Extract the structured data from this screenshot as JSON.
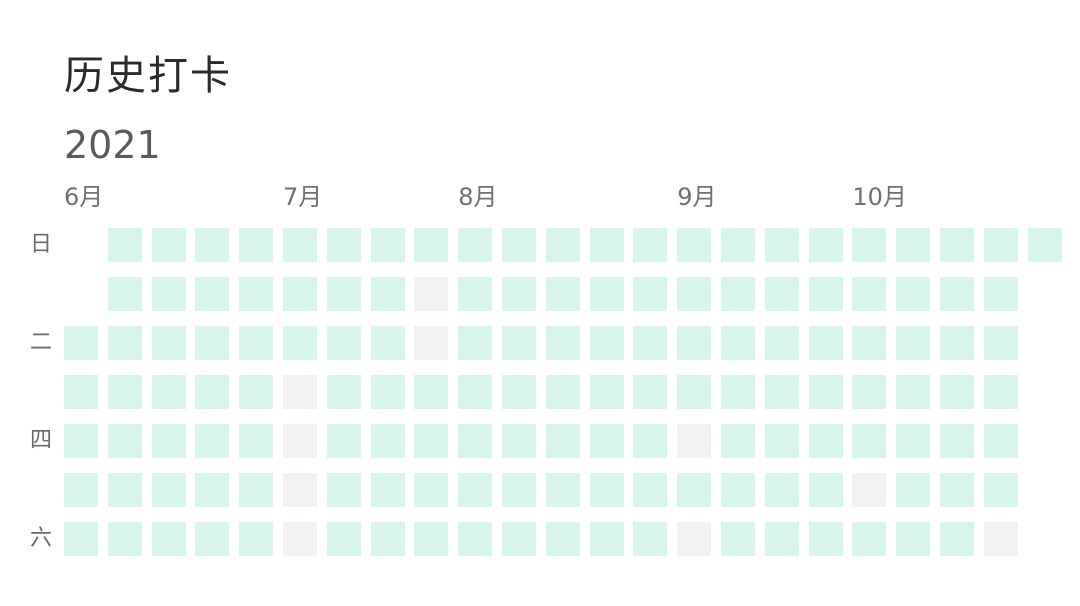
{
  "header": {
    "title": "历史打卡",
    "year": "2021"
  },
  "months": [
    {
      "label": "6月",
      "col": 0
    },
    {
      "label": "7月",
      "col": 5
    },
    {
      "label": "8月",
      "col": 9
    },
    {
      "label": "9月",
      "col": 14
    },
    {
      "label": "10月",
      "col": 18
    }
  ],
  "weekday_labels": [
    {
      "label": "日",
      "row": 0
    },
    {
      "label": "二",
      "row": 2
    },
    {
      "label": "四",
      "row": 4
    },
    {
      "label": "六",
      "row": 6
    }
  ],
  "colors": {
    "checked": "#d7f5ea",
    "missed": "#f2f0f0"
  },
  "calendar": {
    "columns": 23,
    "rows": 7,
    "grid": [
      "-CCCCCCCCCCCCCCCCCCCCCC",
      "-CCCCCCCMCCCCCCCCCCCCC-",
      "CCCCCCCCMCCCCCCCCCCCCC-",
      "CCCCCMCCCCCCCCCCCCCCCC-",
      "CCCCCMCCCCCCCCMCCCCCCC-",
      "CCCCCMCCCCCCCCCCCCMCCC-",
      "CCCCCMCCCCCCCCMCCCCCCM-"
    ]
  }
}
